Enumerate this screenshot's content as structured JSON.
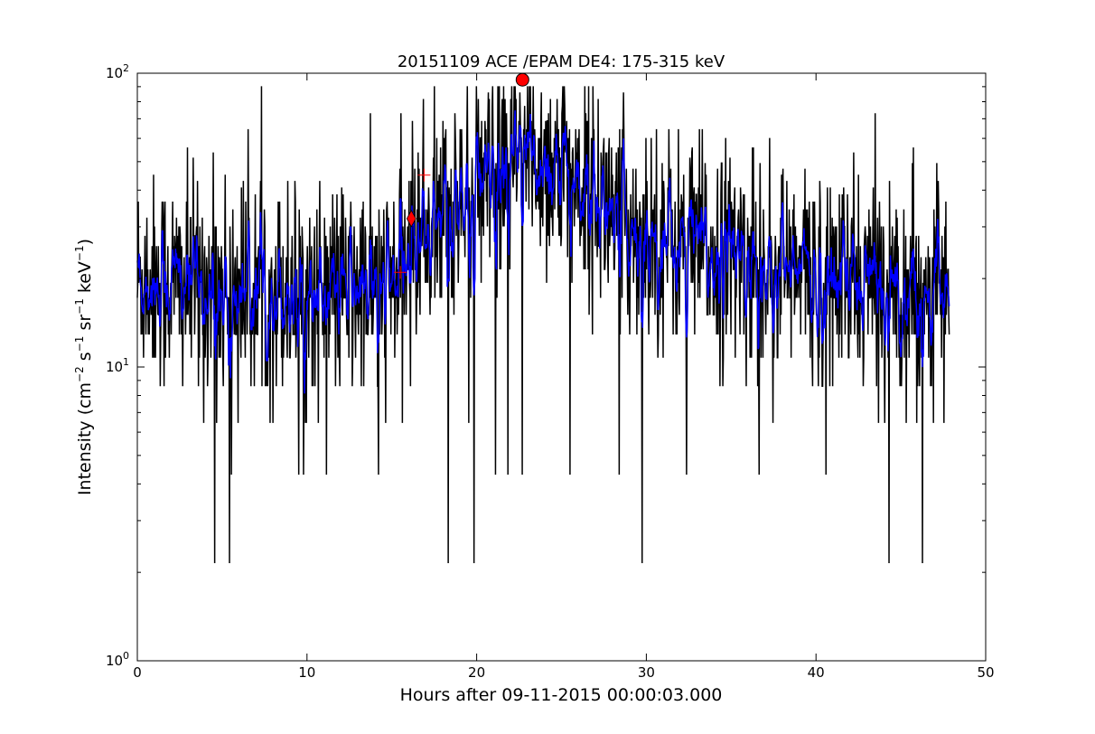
{
  "chart_data": {
    "type": "line",
    "title": "20151109 ACE /EPAM DE4: 175-315 keV",
    "xlabel": "Hours after 09-11-2015 00:00:03.000",
    "ylabel_main": "Intensity (cm",
    "ylabel_exp1": "−2",
    "ylabel_s": " s",
    "ylabel_exp2": "−1",
    "ylabel_sr": " sr",
    "ylabel_exp3": "−1",
    "ylabel_kev": " keV",
    "ylabel_exp4": "−1",
    "ylabel_close": ")",
    "xlim": [
      0,
      50
    ],
    "ylim": [
      1,
      100
    ],
    "yscale": "log",
    "grid": false,
    "x_ticks": [
      0,
      10,
      20,
      30,
      40,
      50
    ],
    "x_tick_labels": [
      "0",
      "10",
      "20",
      "30",
      "40",
      "50"
    ],
    "y_ticks": [
      1,
      10,
      100
    ],
    "y_tick_labels": [
      {
        "base": "10",
        "exp": "0"
      },
      {
        "base": "10",
        "exp": "1"
      },
      {
        "base": "10",
        "exp": "2"
      }
    ],
    "series": [
      {
        "style": "raw",
        "color": "#000000",
        "x_start": 0.0,
        "x_end": 47.85,
        "note_levels": [
          2.15,
          4.3,
          6.45,
          8.6,
          10.75,
          12.9,
          15.05,
          17.2,
          19.35,
          21.5,
          23.65,
          25.8,
          27.95,
          30.1,
          32.25,
          34.4,
          36.55,
          38.7,
          40.85,
          43.0,
          45.15,
          47.3,
          49.45,
          51.6,
          53.75,
          55.9,
          60.2,
          64.5,
          68.8,
          73.1,
          77.4,
          81.7,
          86.0,
          90.3
        ],
        "envelope": {
          "x": [
            0,
            5,
            10,
            14,
            15.5,
            16.5,
            18,
            20,
            21.5,
            22.8,
            24,
            25.5,
            27,
            29,
            32,
            36,
            40,
            44,
            47.85
          ],
          "median": [
            20,
            18.5,
            18,
            18,
            20,
            28,
            33,
            38,
            45,
            55,
            50,
            45,
            38,
            30,
            26,
            23,
            20,
            19,
            18
          ]
        }
      },
      {
        "style": "smoothed",
        "color": "#0000ff",
        "x_start": 0.0,
        "x_end": 47.85
      }
    ],
    "markers": [
      {
        "x": 15.5,
        "y": 21.0,
        "shape": "plus",
        "color": "#ff0000"
      },
      {
        "x": 16.15,
        "y": 32.0,
        "shape": "diamond",
        "color": "#ff0000"
      },
      {
        "x": 16.9,
        "y": 45.0,
        "shape": "plus",
        "color": "#ff0000"
      },
      {
        "x": 22.7,
        "y": 95.0,
        "shape": "circle",
        "color": "#ff0000"
      }
    ]
  }
}
